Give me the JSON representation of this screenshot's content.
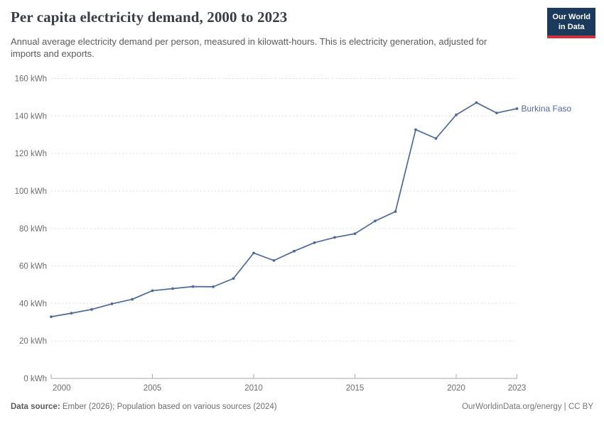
{
  "header": {
    "title": "Per capita electricity demand, 2000 to 2023",
    "subtitle": "Annual average electricity demand per person, measured in kilowatt-hours. This is electricity generation, adjusted for imports and exports.",
    "logo": {
      "line1": "Our World",
      "line2": "in Data"
    }
  },
  "chart_data": {
    "type": "line",
    "title": "Per capita electricity demand, 2000 to 2023",
    "unit": "kWh",
    "x": [
      2000,
      2001,
      2002,
      2003,
      2004,
      2005,
      2006,
      2007,
      2008,
      2009,
      2010,
      2011,
      2012,
      2013,
      2014,
      2015,
      2016,
      2017,
      2018,
      2019,
      2020,
      2021,
      2022,
      2023
    ],
    "series": [
      {
        "name": "Burkina Faso",
        "color": "#4c6a9c",
        "values": [
          32.9,
          34.8,
          36.8,
          39.8,
          42.2,
          46.8,
          47.9,
          49.0,
          48.9,
          53.3,
          66.9,
          62.9,
          67.9,
          72.4,
          75.2,
          77.2,
          84.0,
          89.0,
          132.7,
          128.0,
          140.6,
          147.1,
          141.6,
          143.9
        ]
      }
    ],
    "xlabel": "",
    "ylabel": "",
    "ylim": [
      0,
      160
    ],
    "yticks": [
      0,
      20,
      40,
      60,
      80,
      100,
      120,
      140,
      160
    ],
    "ytick_labels": [
      "0 kWh",
      "20 kWh",
      "40 kWh",
      "60 kWh",
      "80 kWh",
      "100 kWh",
      "120 kWh",
      "140 kWh",
      "160 kWh"
    ],
    "xticks": [
      2000,
      2005,
      2010,
      2015,
      2020,
      2023
    ],
    "grid": "horizontal-dashed",
    "legend_position": "end-of-line-label"
  },
  "footer": {
    "data_source_label": "Data source:",
    "data_source_value": " Ember (2026); Population based on various sources (2024)",
    "credit": "OurWorldinData.org/energy | CC BY"
  },
  "colors": {
    "line": "#4c6a9c",
    "grid": "#dddddd",
    "axis": "#a8a8a8",
    "tick_text": "#6e6e6e",
    "logo_bg": "#1b3a5c",
    "logo_stripe": "#cc333c"
  }
}
